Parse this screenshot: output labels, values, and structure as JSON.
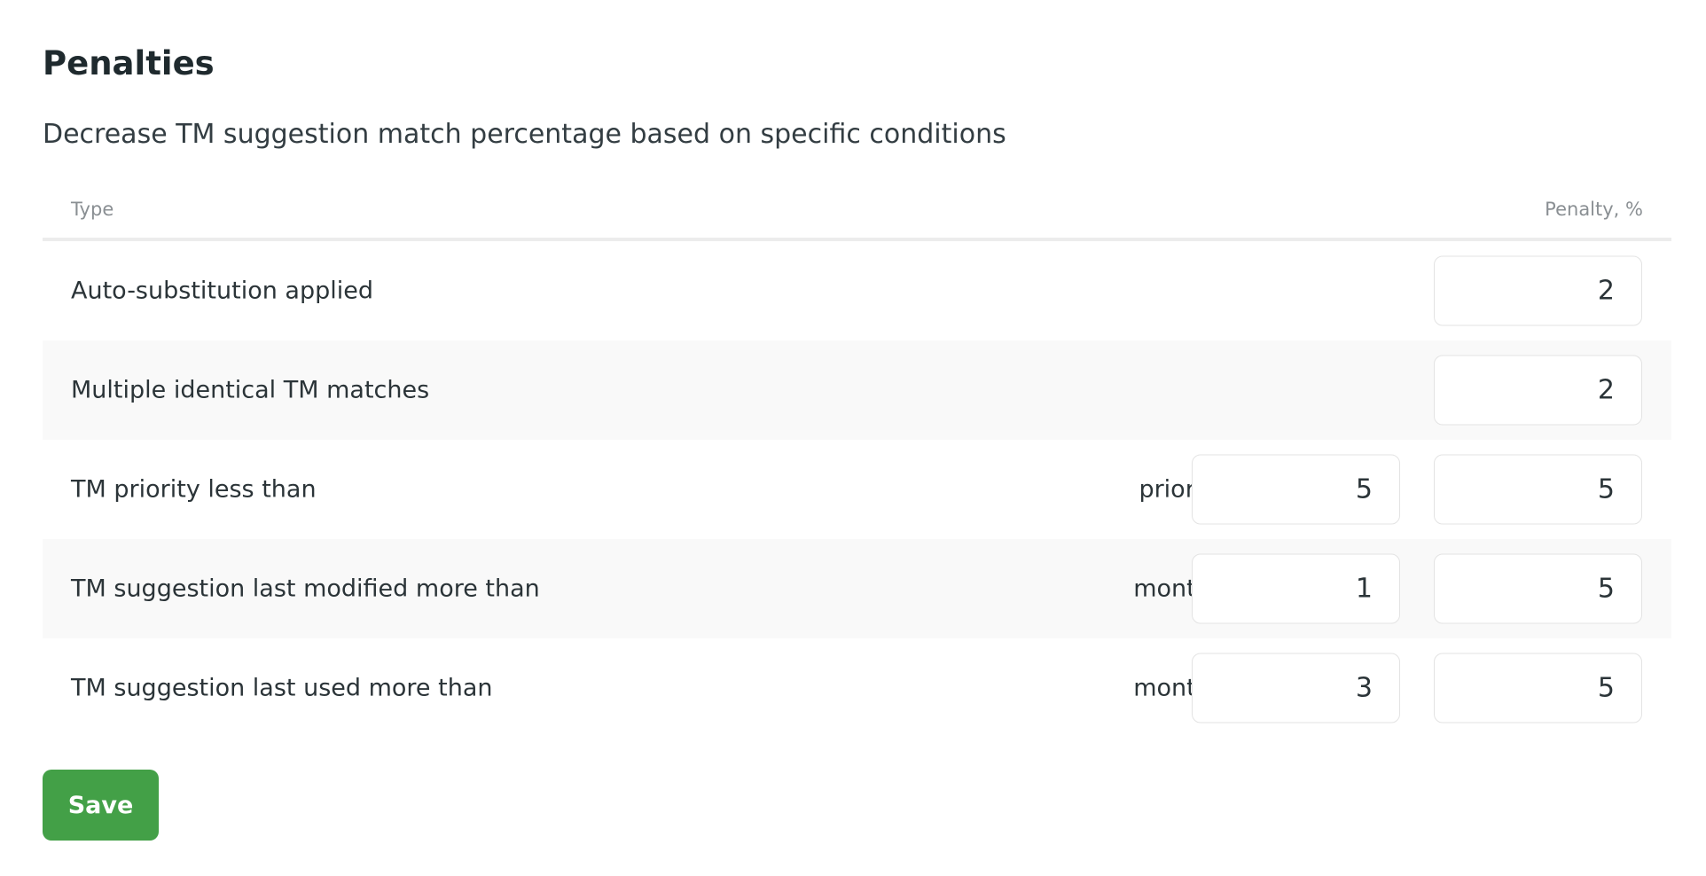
{
  "title": "Penalties",
  "subtitle": "Decrease TM suggestion match percentage based on specific conditions",
  "table": {
    "headers": {
      "type": "Type",
      "penalty": "Penalty, %"
    },
    "rows": [
      {
        "label": "Auto-substitution applied",
        "penalty": "2"
      },
      {
        "label": "Multiple identical TM matches",
        "penalty": "2"
      },
      {
        "label": "TM priority less than",
        "condition_label": "priority:",
        "condition_value": "5",
        "penalty": "5"
      },
      {
        "label": "TM suggestion last modified more than",
        "condition_label": "months:",
        "condition_value": "1",
        "penalty": "5"
      },
      {
        "label": "TM suggestion last used more than",
        "condition_label": "months:",
        "condition_value": "3",
        "penalty": "5"
      }
    ]
  },
  "save_label": "Save",
  "colors": {
    "save_button": "#43a047",
    "alt_row": "#f9f9f9"
  }
}
